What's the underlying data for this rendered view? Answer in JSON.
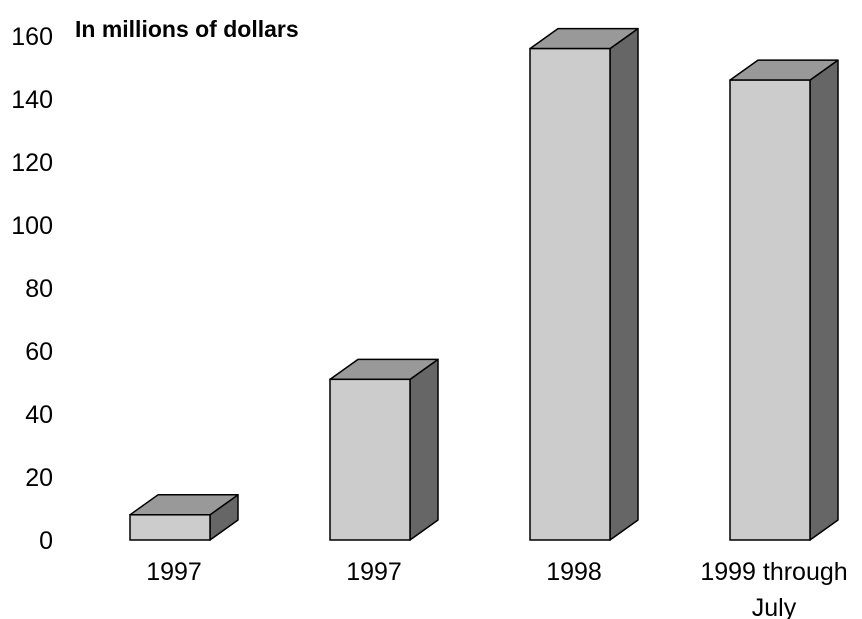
{
  "chart_data": {
    "type": "bar",
    "title": "",
    "ylabel": "In millions of dollars",
    "xlabel": "",
    "categories": [
      "1997",
      "1997",
      "1998",
      "1999 through July"
    ],
    "category_lines": [
      [
        "1997"
      ],
      [
        "1997"
      ],
      [
        "1998"
      ],
      [
        "1999 through",
        "July"
      ]
    ],
    "values": [
      8,
      51,
      156,
      146
    ],
    "ylim": [
      0,
      160
    ],
    "yticks": [
      0,
      20,
      40,
      60,
      80,
      100,
      120,
      140,
      160
    ],
    "grid": false,
    "legend": "none",
    "style": "3d-column",
    "colors": {
      "front": "#cccccc",
      "top": "#999999",
      "side": "#666666",
      "stroke": "#000000"
    }
  }
}
